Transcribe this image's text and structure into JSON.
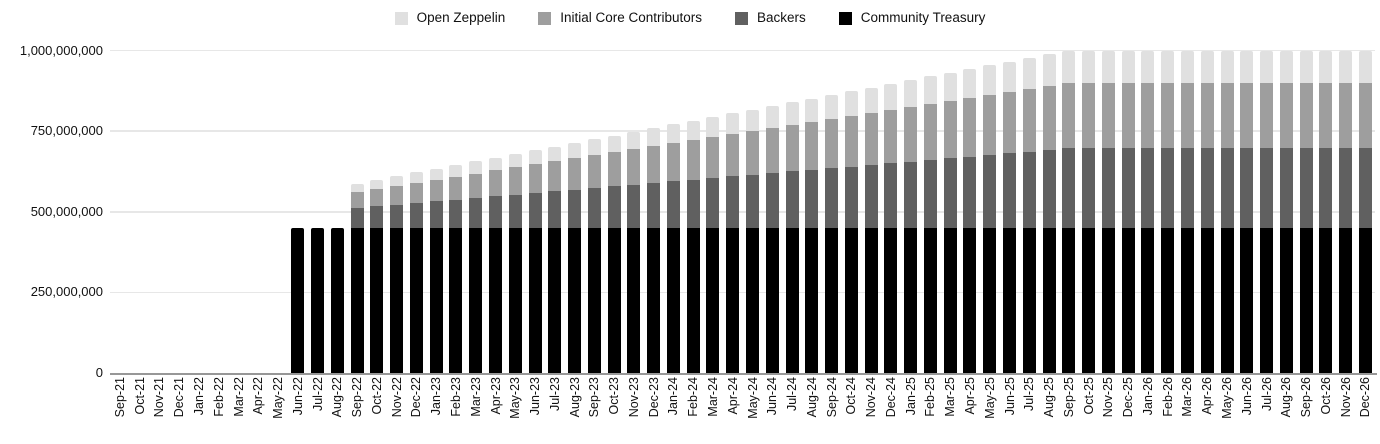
{
  "chart_data": {
    "type": "bar",
    "stacked": true,
    "title": "",
    "unit_note": "token amounts shown in millions of tokens",
    "grid": true,
    "legend_position": "top",
    "ylim_millions": [
      0,
      1000
    ],
    "y_tick_values_millions": [
      0,
      250,
      500,
      750,
      1000
    ],
    "y_tick_labels": [
      "0",
      "250,000,000",
      "500,000,000",
      "750,000,000",
      "1,000,000,000"
    ],
    "categories": [
      "Sep-21",
      "Oct-21",
      "Nov-21",
      "Dec-21",
      "Jan-22",
      "Feb-22",
      "Mar-22",
      "Apr-22",
      "May-22",
      "Jun-22",
      "Jul-22",
      "Aug-22",
      "Sep-22",
      "Oct-22",
      "Nov-22",
      "Dec-22",
      "Jan-23",
      "Feb-23",
      "Mar-23",
      "Apr-23",
      "May-23",
      "Jun-23",
      "Jul-23",
      "Aug-23",
      "Sep-23",
      "Oct-23",
      "Nov-23",
      "Dec-23",
      "Jan-24",
      "Feb-24",
      "Mar-24",
      "Apr-24",
      "May-24",
      "Jun-24",
      "Jul-24",
      "Aug-24",
      "Sep-24",
      "Oct-24",
      "Nov-24",
      "Dec-24",
      "Jan-25",
      "Feb-25",
      "Mar-25",
      "Apr-25",
      "May-25",
      "Jun-25",
      "Jul-25",
      "Aug-25",
      "Sep-25",
      "Oct-25",
      "Nov-25",
      "Dec-25",
      "Jan-26",
      "Feb-26",
      "Mar-26",
      "Apr-26",
      "May-26",
      "Jun-26",
      "Jul-26",
      "Aug-26",
      "Sep-26",
      "Oct-26",
      "Nov-26",
      "Dec-26"
    ],
    "series": [
      {
        "name": "Open Zeppelin",
        "color": "#e0e0e0",
        "values_millions": [
          0,
          0,
          0,
          0,
          0,
          0,
          0,
          0,
          0,
          0,
          0,
          0,
          25,
          27.1,
          29.2,
          31.3,
          33.3,
          35.4,
          37.5,
          39.6,
          41.7,
          43.8,
          45.8,
          47.9,
          50,
          52.1,
          54.2,
          56.3,
          58.3,
          60.4,
          62.5,
          64.6,
          66.7,
          68.8,
          70.8,
          72.9,
          75,
          77.1,
          79.2,
          81.3,
          83.3,
          85.4,
          87.5,
          89.6,
          91.7,
          93.8,
          95.8,
          97.9,
          100,
          100,
          100,
          100,
          100,
          100,
          100,
          100,
          100,
          100,
          100,
          100,
          100,
          100,
          100,
          100
        ]
      },
      {
        "name": "Initial Core Contributors",
        "color": "#9e9e9e",
        "values_millions": [
          0,
          0,
          0,
          0,
          0,
          0,
          0,
          0,
          0,
          0,
          0,
          0,
          50.8,
          55,
          59.2,
          63.4,
          67.7,
          71.9,
          76.1,
          80.4,
          84.6,
          88.8,
          93,
          97.3,
          101.5,
          105.7,
          110,
          114.2,
          118.4,
          122.7,
          126.9,
          131.1,
          135.3,
          139.6,
          143.8,
          148,
          152.3,
          156.5,
          160.7,
          164.9,
          169.2,
          173.4,
          177.6,
          181.9,
          186.1,
          190.3,
          194.5,
          198.8,
          203,
          203,
          203,
          203,
          203,
          203,
          203,
          203,
          203,
          203,
          203,
          203,
          203,
          203,
          203,
          203
        ]
      },
      {
        "name": "Backers",
        "color": "#606060",
        "values_millions": [
          0,
          0,
          0,
          0,
          0,
          0,
          0,
          0,
          0,
          0,
          0,
          0,
          61.8,
          66.9,
          72,
          77.2,
          82.3,
          87.5,
          92.6,
          97.8,
          102.9,
          108.1,
          113.2,
          118.4,
          123.5,
          128.6,
          133.8,
          138.9,
          144.1,
          149.2,
          154.4,
          159.5,
          164.7,
          169.8,
          175,
          180.1,
          185.3,
          190.4,
          195.5,
          200.7,
          205.8,
          211,
          216.1,
          221.3,
          226.4,
          231.6,
          236.7,
          241.9,
          247,
          247,
          247,
          247,
          247,
          247,
          247,
          247,
          247,
          247,
          247,
          247,
          247,
          247,
          247,
          247
        ]
      },
      {
        "name": "Community Treasury",
        "color": "#000000",
        "values_millions": [
          0,
          0,
          0,
          0,
          0,
          0,
          0,
          0,
          0,
          450,
          450,
          450,
          450,
          450,
          450,
          450,
          450,
          450,
          450,
          450,
          450,
          450,
          450,
          450,
          450,
          450,
          450,
          450,
          450,
          450,
          450,
          450,
          450,
          450,
          450,
          450,
          450,
          450,
          450,
          450,
          450,
          450,
          450,
          450,
          450,
          450,
          450,
          450,
          450,
          450,
          450,
          450,
          450,
          450,
          450,
          450,
          450,
          450,
          450,
          450,
          450,
          450,
          450,
          450
        ]
      }
    ]
  }
}
